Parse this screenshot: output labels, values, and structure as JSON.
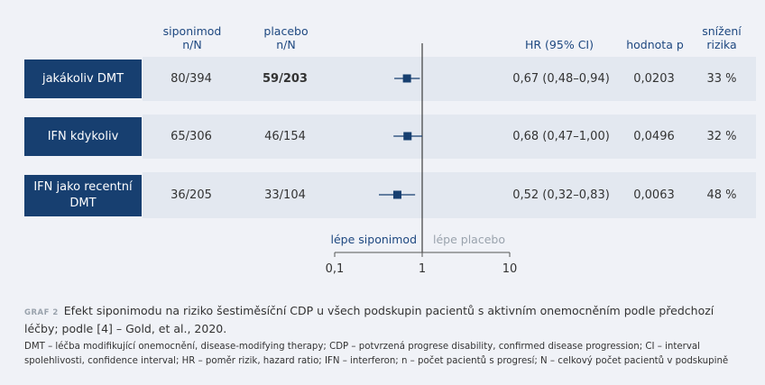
{
  "headers": {
    "siponimod": [
      "siponimod",
      "n/N"
    ],
    "placebo": [
      "placebo",
      "n/N"
    ],
    "hr": "HR (95% CI)",
    "p_value": "hodnota p",
    "risk_reduction": [
      "snížení",
      "rizika"
    ]
  },
  "rows": [
    {
      "label": "jakákoliv DMT",
      "siponimod": "80/394",
      "placebo": "59/203",
      "hr_text": "0,67 (0,48–0,94)",
      "p": "0,0203",
      "reduction": "33 %"
    },
    {
      "label": "IFN kdykoliv",
      "siponimod": "65/306",
      "placebo": "46/154",
      "hr_text": "0,68 (0,47–1,00)",
      "p": "0,0496",
      "reduction": "32 %"
    },
    {
      "label": "IFN jako recentní DMT",
      "siponimod": "36/205",
      "placebo": "33/104",
      "hr_text": "0,52 (0,32–0,83)",
      "p": "0,0063",
      "reduction": "48 %"
    }
  ],
  "chart_data": {
    "type": "scatter",
    "scale": "log",
    "xlim": [
      0.1,
      10
    ],
    "x_ticks": [
      "0,1",
      "1",
      "10"
    ],
    "x_tick_values": [
      0.1,
      1,
      10
    ],
    "reference_line": 1,
    "favours_left": "lépe siponimod",
    "favours_right": "lépe placebo",
    "categories": [
      "jakákoliv DMT",
      "IFN kdykoliv",
      "IFN jako recentní DMT"
    ],
    "hr": [
      0.67,
      0.68,
      0.52
    ],
    "ci_low": [
      0.48,
      0.47,
      0.32
    ],
    "ci_high": [
      0.94,
      1.0,
      0.83
    ],
    "colors": {
      "point": "#173f70",
      "favours_left": "#1e4880",
      "favours_right": "#9aa3ad"
    }
  },
  "caption": {
    "graf": "GRAF 2",
    "title": "Efekt siponimodu na riziko šestiměsíční CDP u všech podskupin pacientů s aktivním onemocněním podle předchozí léčby; podle [4] – Gold, et al., 2020.",
    "abbreviations": "DMT – léčba modifikující onemocnění, disease-modifying therapy; CDP – potvrzená progrese disability, confirmed disease progression; CI – interval spolehlivosti, confidence interval; HR – poměr rizik, hazard ratio; IFN – interferon; n – počet pacientů s progresí; N – celkový počet pacientů v podskupině"
  }
}
